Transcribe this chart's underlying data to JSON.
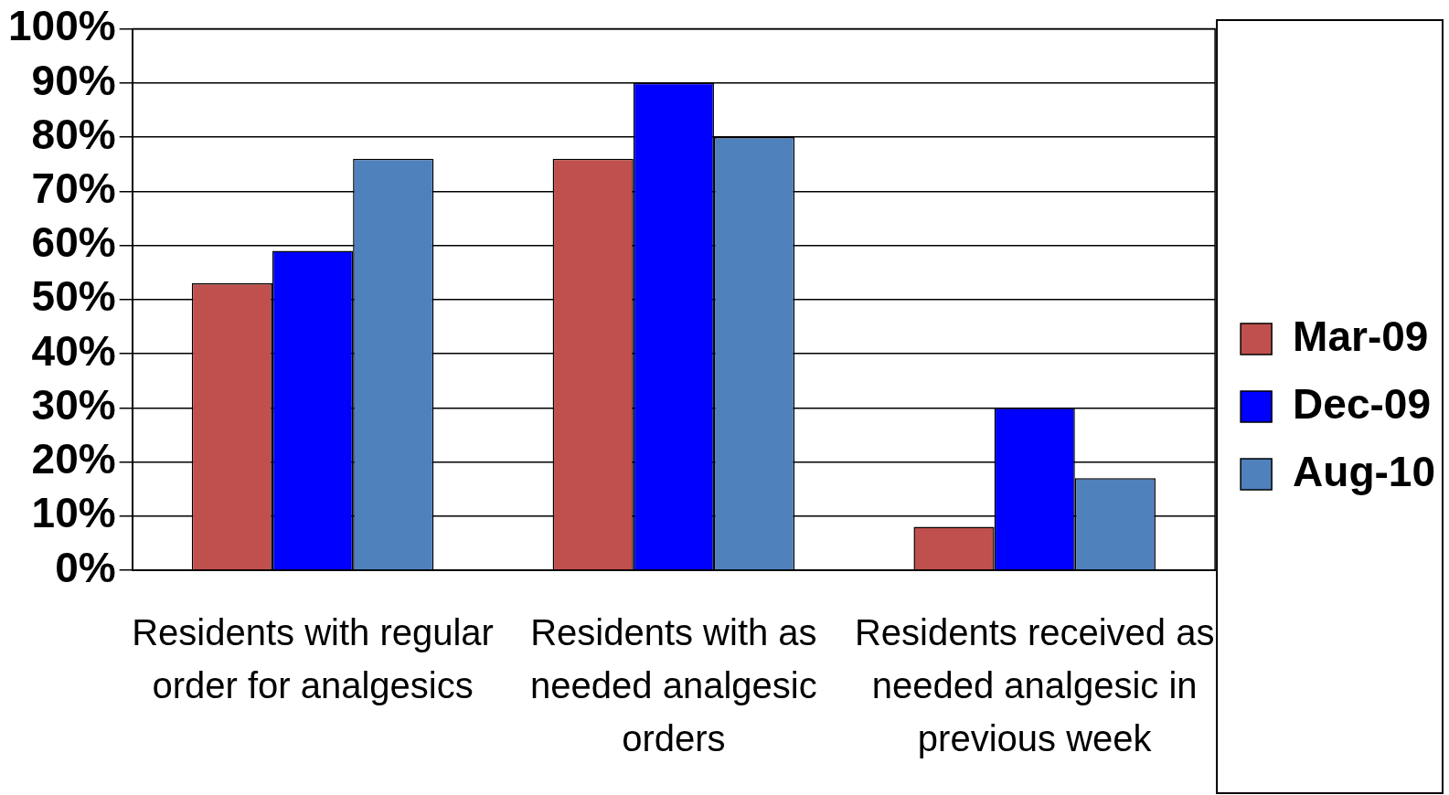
{
  "chart_data": {
    "type": "bar",
    "categories": [
      "Residents with regular order for analgesics",
      "Residents with as needed analgesic orders",
      "Residents received as needed analgesic in previous week"
    ],
    "series": [
      {
        "name": "Mar-09",
        "color": "#c0504d",
        "values": [
          53,
          76,
          8
        ]
      },
      {
        "name": "Dec-09",
        "color": "#0000ff",
        "values": [
          59,
          90,
          30
        ]
      },
      {
        "name": "Aug-10",
        "color": "#4f81bd",
        "values": [
          76,
          80,
          17
        ]
      }
    ],
    "ylim": [
      0,
      100
    ],
    "yticks": [
      {
        "value": 0,
        "label": "0%"
      },
      {
        "value": 10,
        "label": "10%"
      },
      {
        "value": 20,
        "label": "20%"
      },
      {
        "value": 30,
        "label": "30%"
      },
      {
        "value": 40,
        "label": "40%"
      },
      {
        "value": 50,
        "label": "50%"
      },
      {
        "value": 60,
        "label": "60%"
      },
      {
        "value": 70,
        "label": "70%"
      },
      {
        "value": 80,
        "label": "80%"
      },
      {
        "value": 90,
        "label": "90%"
      },
      {
        "value": 100,
        "label": "100%"
      }
    ],
    "grid": "y",
    "legend": "right"
  }
}
